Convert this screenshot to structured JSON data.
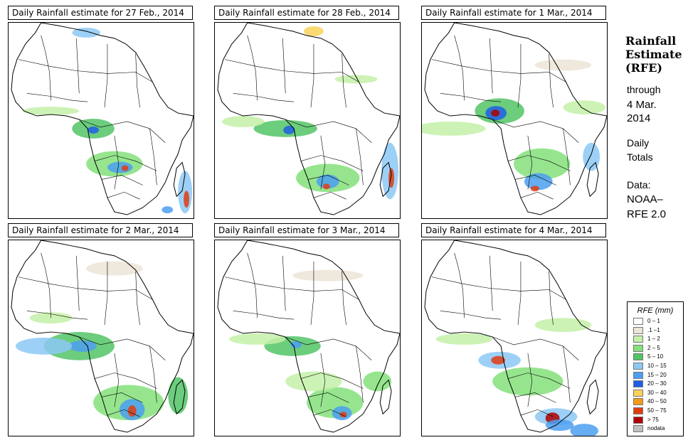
{
  "panels": [
    {
      "title": "Daily Rainfall estimate for  27 Feb., 2014"
    },
    {
      "title": "Daily Rainfall estimate for  28 Feb., 2014"
    },
    {
      "title": "Daily Rainfall estimate for  1 Mar., 2014"
    },
    {
      "title": "Daily Rainfall estimate for  2 Mar., 2014"
    },
    {
      "title": "Daily Rainfall estimate for  3 Mar., 2014"
    },
    {
      "title": "Daily Rainfall estimate for  4 Mar., 2014"
    }
  ],
  "side": {
    "heading_line1": "Rainfall",
    "heading_line2": "Estimate",
    "heading_line3": "(RFE)",
    "through": "through",
    "date_line1": "4 Mar.",
    "date_line2": "2014",
    "daily": "Daily",
    "totals": "Totals",
    "data_label": "Data:",
    "source_line1": "NOAA–",
    "source_line2": "RFE 2.0"
  },
  "legend": {
    "title": "RFE (mm)",
    "items": [
      {
        "label": "0 – 1",
        "color": "#ffffff"
      },
      {
        "label": ".1 –1",
        "color": "#ece4d6"
      },
      {
        "label": "1 – 2",
        "color": "#c4f0a8"
      },
      {
        "label": "2 – 5",
        "color": "#84e07a"
      },
      {
        "label": "5 – 10",
        "color": "#52c466"
      },
      {
        "label": "10 – 15",
        "color": "#8cc8f4"
      },
      {
        "label": "15 – 20",
        "color": "#4c9ff0"
      },
      {
        "label": "20 – 30",
        "color": "#1e5ee6"
      },
      {
        "label": "30 – 40",
        "color": "#fad25a"
      },
      {
        "label": "40 – 50",
        "color": "#f59a18"
      },
      {
        "label": "50 – 75",
        "color": "#e03c12"
      },
      {
        "label": "> 75",
        "color": "#b00000"
      },
      {
        "label": "nodata",
        "color": "#c0c0c0"
      }
    ]
  }
}
